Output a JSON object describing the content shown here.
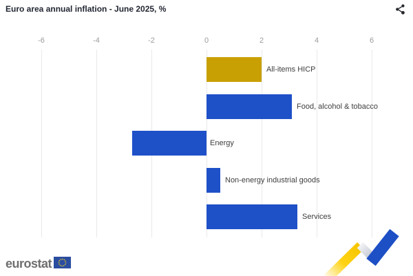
{
  "header": {
    "title": "Euro area annual inflation - June 2025, %"
  },
  "toolbar": {
    "share_icon": "share-icon"
  },
  "footer": {
    "logo_text": "eurostat",
    "flag_icon": "eu-flag-icon"
  },
  "chart_data": {
    "type": "bar",
    "orientation": "horizontal",
    "title": "Euro area annual inflation - June 2025, %",
    "categories": [
      "All-items HICP",
      "Food, alcohol & tobacco",
      "Energy",
      "Non-energy industrial goods",
      "Services"
    ],
    "values": [
      2.0,
      3.1,
      -2.7,
      0.5,
      3.3
    ],
    "unit": "%",
    "xticks": [
      -6,
      -4,
      -2,
      0,
      2,
      4,
      6
    ],
    "xlim": [
      -7.5,
      7.5
    ],
    "axis_position": "top",
    "grid": true,
    "legend": false,
    "bar_colors": [
      "#c9a004",
      "#1e50c8",
      "#1e50c8",
      "#1e50c8",
      "#1e50c8"
    ]
  },
  "colors": {
    "accent_blue": "#1e50c8",
    "accent_gold": "#c9a004",
    "gridline": "#e9e9e9",
    "axis_label": "#9b9b9b",
    "motif_yellow": "#ffd314",
    "motif_gray": "#c3c8d2"
  }
}
